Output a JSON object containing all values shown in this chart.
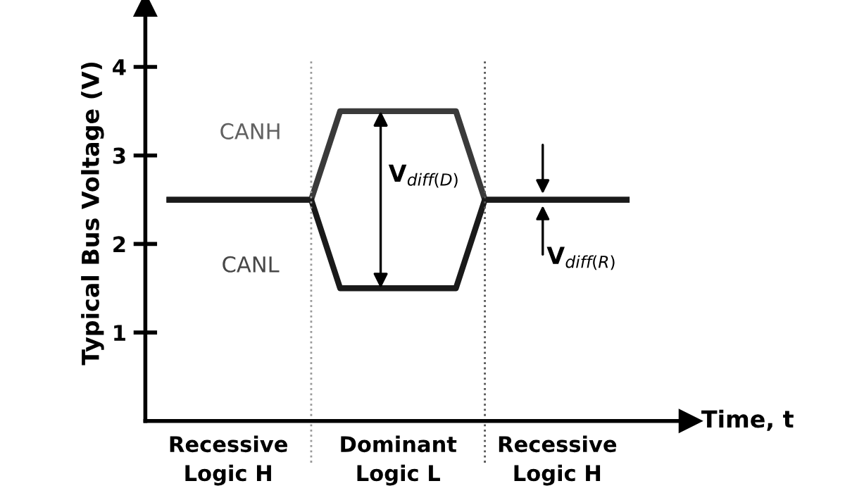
{
  "chart_data": {
    "type": "line",
    "ylabel": "Typical Bus Voltage (V)",
    "xlabel": "Time, t",
    "categories": [
      null,
      null,
      null,
      null,
      null,
      null,
      null,
      null,
      null,
      null,
      null,
      null,
      null,
      null,
      null,
      null,
      null
    ],
    "ylim": [
      0,
      4.7
    ],
    "yticks": [
      1,
      2,
      3,
      4
    ],
    "tick_labels": "y",
    "grid": false,
    "legend": false,
    "marker": "none",
    "line_style": "solid",
    "series": [
      {
        "name": "CANH",
        "color": "#3a3a3a",
        "values": [
          2.5,
          2.5,
          2.5,
          2.5,
          2.5,
          2.5,
          3.5,
          3.5,
          3.5,
          3.5,
          3.5,
          2.5,
          2.5,
          2.5,
          2.5,
          2.5,
          2.5
        ]
      },
      {
        "name": "CANL",
        "color": "#1a1a1a",
        "values": [
          2.5,
          2.5,
          2.5,
          2.5,
          2.5,
          2.5,
          1.5,
          1.5,
          1.5,
          1.5,
          1.5,
          2.5,
          2.5,
          2.5,
          2.5,
          2.5,
          2.5
        ]
      }
    ],
    "annotations": [
      "V$_{diff(D)}$",
      "V$_{diff(R)}$",
      "Recessive\nLogic H",
      "Dominant\nLogic L",
      "Recessive\nLogic H"
    ]
  }
}
